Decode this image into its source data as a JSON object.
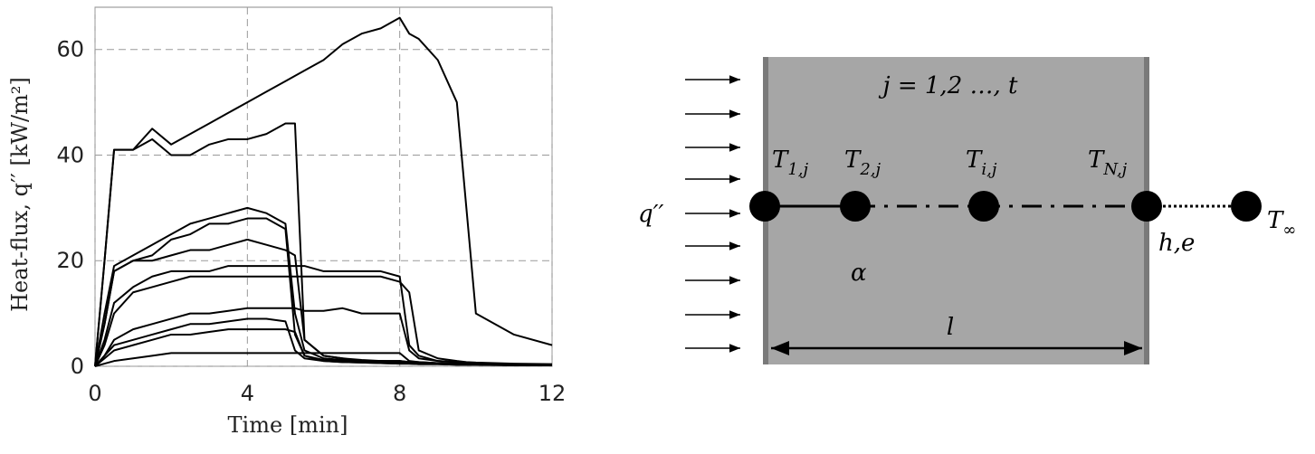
{
  "chart_data": {
    "type": "line",
    "x_label": "Time [min]",
    "y_label": "Heat-flux, q′′  [kW/m²]",
    "x": [
      0,
      0.25,
      0.5,
      1,
      1.5,
      2,
      2.5,
      3,
      3.5,
      4,
      4.5,
      5,
      5.25,
      5.5,
      6,
      6.5,
      7,
      7.5,
      8,
      8.25,
      8.5,
      9,
      9.5,
      9.75,
      10,
      11,
      12
    ],
    "series": [
      {
        "color": "#000000",
        "values": [
          0,
          20,
          41,
          41,
          45,
          42,
          44,
          46,
          48,
          50,
          52,
          54,
          55,
          56,
          58,
          61,
          63,
          64,
          66,
          63,
          62,
          58,
          50,
          30,
          10,
          6,
          4
        ]
      },
      {
        "color": "#000000",
        "values": [
          0,
          20,
          41,
          41,
          43,
          40,
          40,
          42,
          43,
          43,
          44,
          46,
          46,
          5,
          2,
          1.5,
          1,
          1,
          1,
          0.8,
          0.7,
          0.5,
          0.5,
          0.5,
          0.5,
          0.3,
          0.3
        ]
      },
      {
        "color": "#000000",
        "values": [
          0,
          10,
          19,
          21,
          23,
          25,
          27,
          28,
          29,
          30,
          29,
          27,
          10,
          3,
          1.5,
          1.2,
          1,
          1,
          0.8,
          0.8,
          0.7,
          0.5,
          0.5,
          0.4,
          0.4,
          0.3,
          0.3
        ]
      },
      {
        "color": "#000000",
        "values": [
          0,
          8,
          18,
          20,
          21,
          24,
          25,
          27,
          27,
          28,
          28,
          26,
          6,
          2,
          1.2,
          1,
          1,
          0.8,
          0.8,
          0.7,
          0.6,
          0.5,
          0.4,
          0.4,
          0.4,
          0.3,
          0.3
        ]
      },
      {
        "color": "#000000",
        "values": [
          0,
          8,
          18,
          20,
          20,
          21,
          22,
          22,
          23,
          24,
          23,
          22,
          21,
          5,
          2,
          1.5,
          1.2,
          1,
          1,
          0.8,
          0.8,
          0.6,
          0.5,
          0.5,
          0.4,
          0.3,
          0.3
        ]
      },
      {
        "color": "#000000",
        "values": [
          0,
          5,
          12,
          15,
          17,
          18,
          18,
          18,
          19,
          19,
          19,
          19,
          19,
          19,
          18,
          18,
          18,
          18,
          17,
          4,
          2,
          1,
          0.8,
          0.7,
          0.6,
          0.4,
          0.3
        ]
      },
      {
        "color": "#000000",
        "values": [
          0,
          4,
          10,
          14,
          15,
          16,
          17,
          17,
          17,
          17,
          17,
          17,
          17,
          17,
          17,
          17,
          17,
          17,
          16,
          14,
          3,
          1.5,
          1,
          0.8,
          0.7,
          0.5,
          0.4
        ]
      },
      {
        "color": "#000000",
        "values": [
          0,
          2,
          5,
          7,
          8,
          9,
          10,
          10,
          10.5,
          11,
          11,
          11,
          11,
          10.5,
          10.5,
          11,
          10,
          10,
          10,
          3,
          1.5,
          1,
          0.8,
          0.7,
          0.6,
          0.4,
          0.3
        ]
      },
      {
        "color": "#000000",
        "values": [
          0,
          2,
          4,
          5,
          6,
          7,
          8,
          8,
          8.5,
          9,
          9,
          8.5,
          3,
          1.5,
          1,
          0.8,
          0.7,
          0.6,
          0.5,
          0.5,
          0.4,
          0.4,
          0.3,
          0.3,
          0.3,
          0.2,
          0.2
        ]
      },
      {
        "color": "#000000",
        "values": [
          0,
          1.5,
          3,
          4,
          5,
          6,
          6,
          6.5,
          7,
          7,
          7,
          7,
          6.5,
          2,
          1,
          0.8,
          0.7,
          0.6,
          0.5,
          0.5,
          0.4,
          0.4,
          0.3,
          0.3,
          0.3,
          0.2,
          0.2
        ]
      },
      {
        "color": "#000000",
        "values": [
          0,
          0.5,
          1,
          1.5,
          2,
          2.5,
          2.5,
          2.5,
          2.5,
          2.5,
          2.5,
          2.5,
          2.5,
          2.5,
          2.5,
          2.5,
          2.5,
          2.5,
          2.5,
          1,
          0.8,
          0.6,
          0.5,
          0.5,
          0.4,
          0.3,
          0.2
        ]
      }
    ],
    "xlim": [
      0,
      12
    ],
    "xticks": [
      0,
      4,
      8,
      12
    ],
    "ylim": [
      0,
      68
    ],
    "yticks": [
      0,
      20,
      40,
      60
    ],
    "grid": true
  },
  "diagram": {
    "index_label": "j = 1,2 …, t",
    "nodes": [
      {
        "base": "T",
        "sub": "1,j"
      },
      {
        "base": "T",
        "sub": "2,j"
      },
      {
        "base": "T",
        "sub": "i,j"
      },
      {
        "base": "T",
        "sub": "N,j"
      },
      {
        "base": "T",
        "sub": "∞"
      }
    ],
    "heat_flux": "q′′",
    "boundary": "h,e",
    "diffusivity": "α",
    "thickness": "l"
  }
}
